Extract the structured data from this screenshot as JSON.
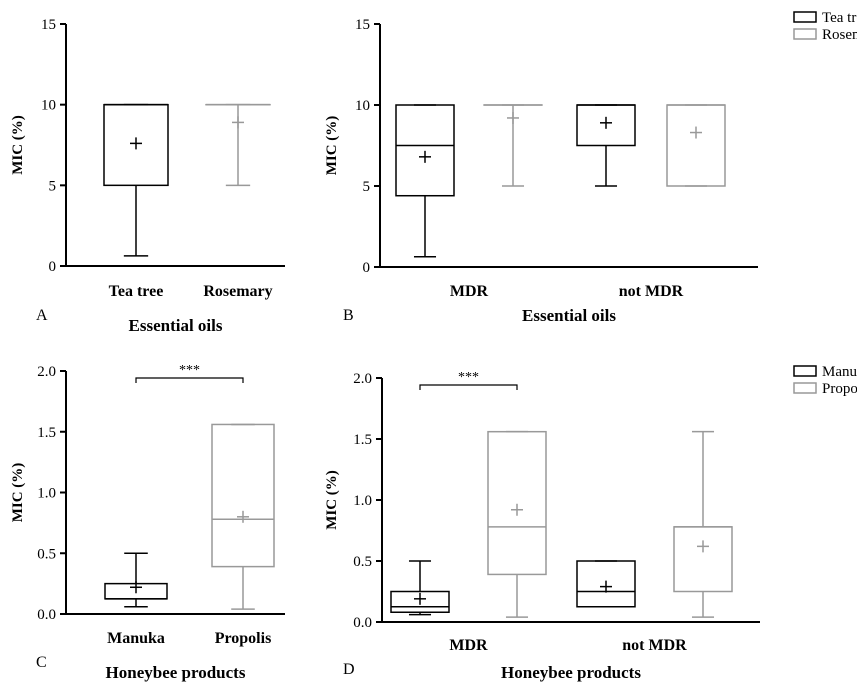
{
  "chart_data": [
    {
      "panel": "A",
      "type": "box",
      "xlabel": "Essential oils",
      "ylabel": "MIC (%)",
      "ylim": [
        0,
        15
      ],
      "yticks": [
        "0",
        "5",
        "10",
        "15"
      ],
      "categories": [
        "Tea tree",
        "Rosemary"
      ],
      "series": [
        {
          "name": "Tea tree",
          "color": "#000000",
          "boxes": [
            {
              "category": "Tea tree",
              "min": 0.63,
              "q1": 5,
              "median": 10,
              "q3": 10,
              "max": 10,
              "mean": 7.6
            }
          ]
        },
        {
          "name": "Rosemary",
          "color": "#999999",
          "boxes": [
            {
              "category": "Rosemary",
              "min": 5,
              "q1": 10,
              "median": 10,
              "q3": 10,
              "max": 10,
              "mean": 8.9
            }
          ]
        }
      ]
    },
    {
      "panel": "B",
      "type": "box",
      "xlabel": "Essential oils",
      "ylabel": "MIC (%)",
      "ylim": [
        0,
        15
      ],
      "yticks": [
        "0",
        "5",
        "10",
        "15"
      ],
      "categories": [
        "MDR",
        "not MDR"
      ],
      "legend": [
        "Tea tree",
        "Rosemary"
      ],
      "series": [
        {
          "name": "Tea tree",
          "color": "#000000",
          "boxes": [
            {
              "category": "MDR",
              "min": 0.63,
              "q1": 4.4,
              "median": 7.5,
              "q3": 10,
              "max": 10,
              "mean": 6.8
            },
            {
              "category": "not MDR",
              "min": 5,
              "q1": 7.5,
              "median": 10,
              "q3": 10,
              "max": 10,
              "mean": 8.9
            }
          ]
        },
        {
          "name": "Rosemary",
          "color": "#999999",
          "boxes": [
            {
              "category": "MDR",
              "min": 5,
              "q1": 10,
              "median": 10,
              "q3": 10,
              "max": 10,
              "mean": 9.2
            },
            {
              "category": "not MDR",
              "min": 5,
              "q1": 5,
              "median": 10,
              "q3": 10,
              "max": 10,
              "mean": 8.3
            }
          ]
        }
      ]
    },
    {
      "panel": "C",
      "type": "box",
      "xlabel": "Honeybee products",
      "ylabel": "MIC (%)",
      "ylim": [
        0,
        2.0
      ],
      "yticks": [
        "0.0",
        "0.5",
        "1.0",
        "1.5",
        "2.0"
      ],
      "categories": [
        "Manuka",
        "Propolis"
      ],
      "significance": [
        {
          "from": "Manuka",
          "to": "Propolis",
          "label": "***"
        }
      ],
      "series": [
        {
          "name": "Manuka",
          "color": "#000000",
          "boxes": [
            {
              "category": "Manuka",
              "min": 0.06,
              "q1": 0.125,
              "median": 0.125,
              "q3": 0.25,
              "max": 0.5,
              "mean": 0.22
            }
          ]
        },
        {
          "name": "Propolis",
          "color": "#999999",
          "boxes": [
            {
              "category": "Propolis",
              "min": 0.04,
              "q1": 0.39,
              "median": 0.78,
              "q3": 1.56,
              "max": 1.56,
              "mean": 0.8
            }
          ]
        }
      ]
    },
    {
      "panel": "D",
      "type": "box",
      "xlabel": "Honeybee products",
      "ylabel": "MIC (%)",
      "ylim": [
        0,
        2.0
      ],
      "yticks": [
        "0.0",
        "0.5",
        "1.0",
        "1.5",
        "2.0"
      ],
      "categories": [
        "MDR",
        "not MDR"
      ],
      "legend": [
        "Manuka",
        "Propolis"
      ],
      "significance": [
        {
          "category": "MDR",
          "label": "***"
        }
      ],
      "series": [
        {
          "name": "Manuka",
          "color": "#000000",
          "boxes": [
            {
              "category": "MDR",
              "min": 0.06,
              "q1": 0.08,
              "median": 0.125,
              "q3": 0.25,
              "max": 0.5,
              "mean": 0.19
            },
            {
              "category": "not MDR",
              "min": 0.125,
              "q1": 0.125,
              "median": 0.25,
              "q3": 0.5,
              "max": 0.5,
              "mean": 0.29
            }
          ]
        },
        {
          "name": "Propolis",
          "color": "#999999",
          "boxes": [
            {
              "category": "MDR",
              "min": 0.04,
              "q1": 0.39,
              "median": 0.78,
              "q3": 1.56,
              "max": 1.56,
              "mean": 0.92
            },
            {
              "category": "not MDR",
              "min": 0.04,
              "q1": 0.25,
              "median": 0.78,
              "q3": 0.78,
              "max": 1.56,
              "mean": 0.62
            }
          ]
        }
      ]
    }
  ]
}
